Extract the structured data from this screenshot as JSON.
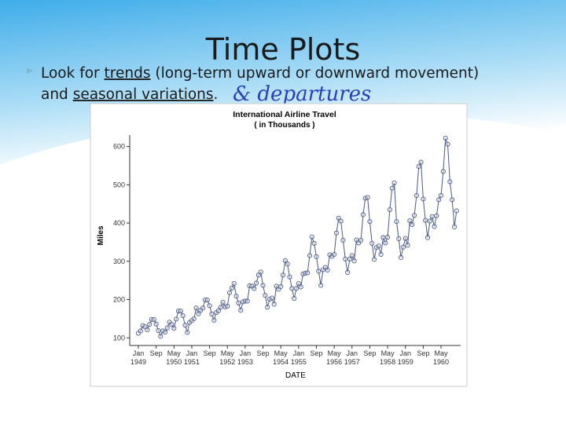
{
  "slide": {
    "title": "Time Plots",
    "bullet": {
      "runs": [
        "Look for ",
        "trends",
        " (long-term upward or downward movement)",
        "and ",
        "seasonal variations",
        "."
      ]
    },
    "handwriting": "& departures"
  },
  "chart_data": {
    "type": "line",
    "title": "International Airline Travel",
    "subtitle": "( in Thousands )",
    "x_label": "DATE",
    "y_label": "Miles",
    "color": "#4b5a88",
    "markers": true,
    "x": [
      "1949-01",
      "1949-02",
      "1949-03",
      "1949-04",
      "1949-05",
      "1949-06",
      "1949-07",
      "1949-08",
      "1949-09",
      "1949-10",
      "1949-11",
      "1949-12",
      "1950-01",
      "1950-02",
      "1950-03",
      "1950-04",
      "1950-05",
      "1950-06",
      "1950-07",
      "1950-08",
      "1950-09",
      "1950-10",
      "1950-11",
      "1950-12",
      "1951-01",
      "1951-02",
      "1951-03",
      "1951-04",
      "1951-05",
      "1951-06",
      "1951-07",
      "1951-08",
      "1951-09",
      "1951-10",
      "1951-11",
      "1951-12",
      "1952-01",
      "1952-02",
      "1952-03",
      "1952-04",
      "1952-05",
      "1952-06",
      "1952-07",
      "1952-08",
      "1952-09",
      "1952-10",
      "1952-11",
      "1952-12",
      "1953-01",
      "1953-02",
      "1953-03",
      "1953-04",
      "1953-05",
      "1953-06",
      "1953-07",
      "1953-08",
      "1953-09",
      "1953-10",
      "1953-11",
      "1953-12",
      "1954-01",
      "1954-02",
      "1954-03",
      "1954-04",
      "1954-05",
      "1954-06",
      "1954-07",
      "1954-08",
      "1954-09",
      "1954-10",
      "1954-11",
      "1954-12",
      "1955-01",
      "1955-02",
      "1955-03",
      "1955-04",
      "1955-05",
      "1955-06",
      "1955-07",
      "1955-08",
      "1955-09",
      "1955-10",
      "1955-11",
      "1955-12",
      "1956-01",
      "1956-02",
      "1956-03",
      "1956-04",
      "1956-05",
      "1956-06",
      "1956-07",
      "1956-08",
      "1956-09",
      "1956-10",
      "1956-11",
      "1956-12",
      "1957-01",
      "1957-02",
      "1957-03",
      "1957-04",
      "1957-05",
      "1957-06",
      "1957-07",
      "1957-08",
      "1957-09",
      "1957-10",
      "1957-11",
      "1957-12",
      "1958-01",
      "1958-02",
      "1958-03",
      "1958-04",
      "1958-05",
      "1958-06",
      "1958-07",
      "1958-08",
      "1958-09",
      "1958-10",
      "1958-11",
      "1958-12",
      "1959-01",
      "1959-02",
      "1959-03",
      "1959-04",
      "1959-05",
      "1959-06",
      "1959-07",
      "1959-08",
      "1959-09",
      "1959-10",
      "1959-11",
      "1959-12",
      "1960-01",
      "1960-02",
      "1960-03",
      "1960-04",
      "1960-05",
      "1960-06",
      "1960-07",
      "1960-08",
      "1960-09",
      "1960-10",
      "1960-11",
      "1960-12"
    ],
    "values": [
      112,
      118,
      132,
      129,
      121,
      135,
      148,
      148,
      136,
      119,
      104,
      118,
      115,
      126,
      141,
      135,
      125,
      149,
      170,
      170,
      158,
      133,
      114,
      140,
      145,
      150,
      178,
      163,
      172,
      178,
      199,
      199,
      184,
      162,
      146,
      166,
      171,
      180,
      193,
      181,
      183,
      218,
      230,
      242,
      209,
      191,
      172,
      194,
      196,
      196,
      236,
      235,
      229,
      243,
      264,
      272,
      237,
      211,
      180,
      201,
      204,
      188,
      235,
      227,
      234,
      264,
      302,
      293,
      259,
      229,
      203,
      229,
      242,
      233,
      267,
      269,
      270,
      315,
      364,
      347,
      312,
      274,
      237,
      278,
      284,
      277,
      317,
      313,
      318,
      374,
      413,
      405,
      355,
      306,
      271,
      306,
      315,
      301,
      356,
      348,
      355,
      422,
      465,
      467,
      404,
      347,
      305,
      336,
      340,
      318,
      362,
      348,
      363,
      435,
      491,
      505,
      404,
      359,
      310,
      337,
      360,
      342,
      406,
      396,
      420,
      472,
      548,
      559,
      463,
      407,
      362,
      405,
      417,
      391,
      419,
      461,
      472,
      535,
      622,
      606,
      508,
      461,
      390,
      432
    ],
    "ylim": [
      80,
      630
    ],
    "yticks": [
      100,
      200,
      300,
      400,
      500,
      600
    ],
    "xticks": [
      {
        "value": "1949-01",
        "label": "Jan 1949"
      },
      {
        "value": "1949-09",
        "label": "Sep"
      },
      {
        "value": "1950-05",
        "label": "May 1950"
      },
      {
        "value": "1951-01",
        "label": "Jan 1951"
      },
      {
        "value": "1951-09",
        "label": "Sep"
      },
      {
        "value": "1952-05",
        "label": "May 1952"
      },
      {
        "value": "1953-01",
        "label": "Jan 1953"
      },
      {
        "value": "1953-09",
        "label": "Sep"
      },
      {
        "value": "1954-05",
        "label": "May 1954"
      },
      {
        "value": "1955-01",
        "label": "Jan 1955"
      },
      {
        "value": "1955-09",
        "label": "Sep"
      },
      {
        "value": "1956-05",
        "label": "May 1956"
      },
      {
        "value": "1957-01",
        "label": "Jan 1957"
      },
      {
        "value": "1957-09",
        "label": "Sep"
      },
      {
        "value": "1958-05",
        "label": "May 1958"
      },
      {
        "value": "1959-01",
        "label": "Jan 1959"
      },
      {
        "value": "1959-09",
        "label": "Sep"
      },
      {
        "value": "1960-05",
        "label": "May 1960"
      }
    ]
  }
}
